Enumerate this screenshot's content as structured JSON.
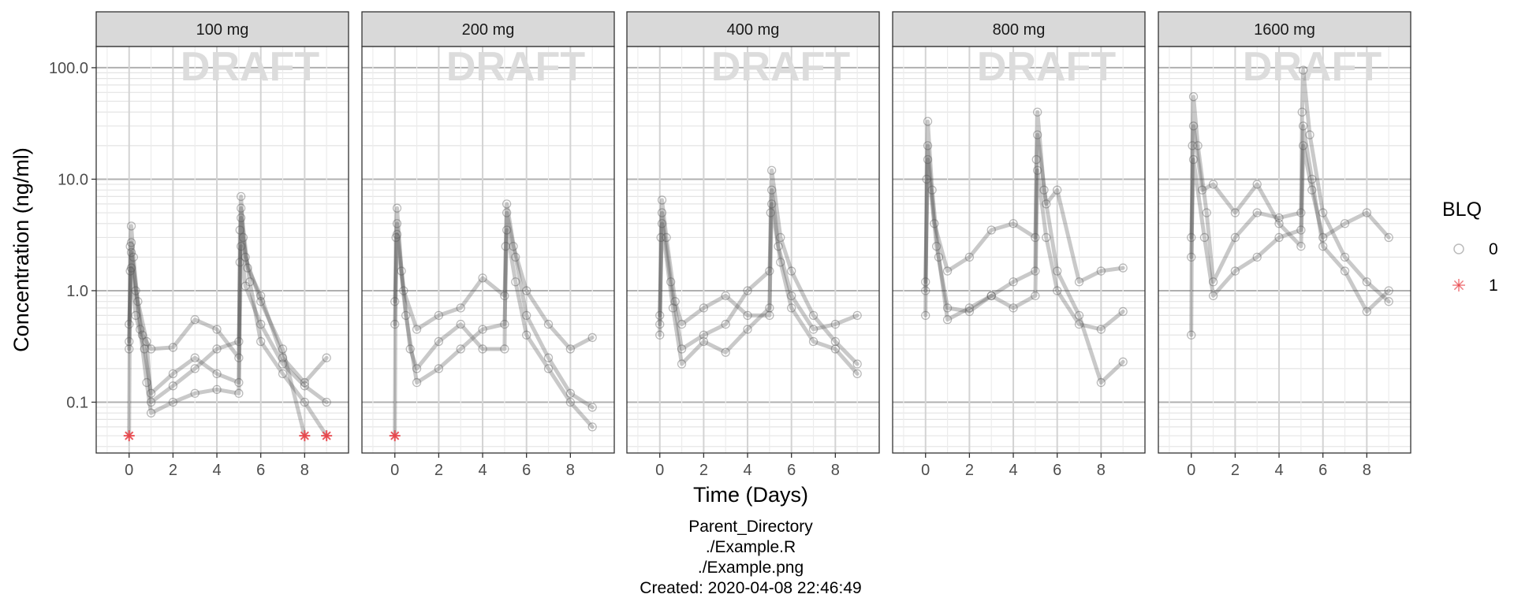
{
  "chart_data": {
    "type": "line",
    "facet_by": "dose",
    "panels": [
      "100 mg",
      "200 mg",
      "400 mg",
      "800 mg",
      "1600 mg"
    ],
    "xlabel": "Time (Days)",
    "ylabel": "Concentration (ng/ml)",
    "x_ticks": [
      0,
      2,
      4,
      6,
      8
    ],
    "x_range": [
      -1.5,
      10
    ],
    "y_scale": "log10",
    "y_range": [
      0.035,
      155
    ],
    "y_ticks": [
      0.1,
      1,
      10,
      100
    ],
    "y_tick_labels": [
      "0.1",
      "1.0",
      "10.0",
      "100.0"
    ],
    "grid": true,
    "watermark": "DRAFT",
    "legend": {
      "title": "BLQ",
      "position": "right",
      "entries": [
        {
          "label": "0",
          "marker": "open-circle",
          "color": "#bbbbbb"
        },
        {
          "label": "1",
          "marker": "asterisk",
          "color": "#e8454a"
        }
      ]
    },
    "line_color": "#4d4d4d",
    "series": [
      {
        "panel": "100 mg",
        "name": "100 mg",
        "points": [
          {
            "x": 0,
            "y": 0.05,
            "blq": 1
          },
          {
            "x": 0.05,
            "y": 2.5
          },
          {
            "x": 0.1,
            "y": 3.8
          },
          {
            "x": 0.2,
            "y": 2.0
          },
          {
            "x": 0.5,
            "y": 0.45
          },
          {
            "x": 0.8,
            "y": 0.15
          },
          {
            "x": 1,
            "y": 0.08
          },
          {
            "x": 2,
            "y": 0.1
          },
          {
            "x": 3,
            "y": 0.12
          },
          {
            "x": 4,
            "y": 0.13
          },
          {
            "x": 5,
            "y": 0.12
          },
          {
            "x": 5.05,
            "y": 3.5
          },
          {
            "x": 5.1,
            "y": 7.0
          },
          {
            "x": 5.2,
            "y": 3.0
          },
          {
            "x": 5.5,
            "y": 1.2
          },
          {
            "x": 6,
            "y": 0.35
          },
          {
            "x": 7,
            "y": 0.18
          },
          {
            "x": 8,
            "y": 0.1
          },
          {
            "x": 9,
            "y": 0.05,
            "blq": 1
          }
        ]
      },
      {
        "panel": "100 mg",
        "name": "100 mg",
        "points": [
          {
            "x": 0,
            "y": 0.3
          },
          {
            "x": 0.05,
            "y": 1.5
          },
          {
            "x": 0.1,
            "y": 2.7
          },
          {
            "x": 0.3,
            "y": 1.0
          },
          {
            "x": 0.6,
            "y": 0.4
          },
          {
            "x": 1,
            "y": 0.3
          },
          {
            "x": 2,
            "y": 0.31
          },
          {
            "x": 3,
            "y": 0.55
          },
          {
            "x": 4,
            "y": 0.45
          },
          {
            "x": 5,
            "y": 0.25
          },
          {
            "x": 5.05,
            "y": 1.8
          },
          {
            "x": 5.1,
            "y": 4.5
          },
          {
            "x": 5.3,
            "y": 2.0
          },
          {
            "x": 6,
            "y": 0.8
          },
          {
            "x": 7,
            "y": 0.3
          },
          {
            "x": 8,
            "y": 0.05,
            "blq": 1
          }
        ]
      },
      {
        "panel": "100 mg",
        "name": "100 mg",
        "points": [
          {
            "x": 0,
            "y": 0.5
          },
          {
            "x": 0.1,
            "y": 1.6
          },
          {
            "x": 0.3,
            "y": 0.6
          },
          {
            "x": 0.7,
            "y": 0.3
          },
          {
            "x": 1,
            "y": 0.12
          },
          {
            "x": 2,
            "y": 0.18
          },
          {
            "x": 3,
            "y": 0.25
          },
          {
            "x": 4,
            "y": 0.18
          },
          {
            "x": 5,
            "y": 0.15
          },
          {
            "x": 5.1,
            "y": 2.5
          },
          {
            "x": 5.3,
            "y": 1.1
          },
          {
            "x": 6,
            "y": 0.5
          },
          {
            "x": 7,
            "y": 0.22
          },
          {
            "x": 8,
            "y": 0.14
          },
          {
            "x": 9,
            "y": 0.1
          }
        ]
      },
      {
        "panel": "100 mg",
        "name": "100 mg",
        "points": [
          {
            "x": 0,
            "y": 0.35
          },
          {
            "x": 0.1,
            "y": 2.2
          },
          {
            "x": 0.4,
            "y": 0.8
          },
          {
            "x": 0.8,
            "y": 0.35
          },
          {
            "x": 1,
            "y": 0.1
          },
          {
            "x": 2,
            "y": 0.14
          },
          {
            "x": 3,
            "y": 0.2
          },
          {
            "x": 4,
            "y": 0.3
          },
          {
            "x": 5,
            "y": 0.35
          },
          {
            "x": 5.1,
            "y": 5.5
          },
          {
            "x": 5.4,
            "y": 1.6
          },
          {
            "x": 6,
            "y": 0.9
          },
          {
            "x": 7,
            "y": 0.25
          },
          {
            "x": 8,
            "y": 0.15
          },
          {
            "x": 9,
            "y": 0.25
          }
        ]
      },
      {
        "panel": "200 mg",
        "name": "200 mg",
        "points": [
          {
            "x": 0,
            "y": 0.05,
            "blq": 1
          },
          {
            "x": 0.05,
            "y": 3.0
          },
          {
            "x": 0.1,
            "y": 5.5
          },
          {
            "x": 0.3,
            "y": 1.5
          },
          {
            "x": 0.7,
            "y": 0.3
          },
          {
            "x": 1,
            "y": 0.2
          },
          {
            "x": 2,
            "y": 0.35
          },
          {
            "x": 3,
            "y": 0.5
          },
          {
            "x": 4,
            "y": 0.3
          },
          {
            "x": 5,
            "y": 0.3
          },
          {
            "x": 5.05,
            "y": 2.5
          },
          {
            "x": 5.1,
            "y": 6.0
          },
          {
            "x": 5.5,
            "y": 2.0
          },
          {
            "x": 6,
            "y": 0.6
          },
          {
            "x": 7,
            "y": 0.25
          },
          {
            "x": 8,
            "y": 0.12
          },
          {
            "x": 9,
            "y": 0.09
          }
        ]
      },
      {
        "panel": "200 mg",
        "name": "200 mg",
        "points": [
          {
            "x": 0,
            "y": 0.8
          },
          {
            "x": 0.1,
            "y": 4.0
          },
          {
            "x": 0.4,
            "y": 1.0
          },
          {
            "x": 1,
            "y": 0.45
          },
          {
            "x": 2,
            "y": 0.6
          },
          {
            "x": 3,
            "y": 0.7
          },
          {
            "x": 4,
            "y": 1.3
          },
          {
            "x": 5,
            "y": 0.9
          },
          {
            "x": 5.1,
            "y": 5.0
          },
          {
            "x": 5.4,
            "y": 2.5
          },
          {
            "x": 6,
            "y": 1.0
          },
          {
            "x": 7,
            "y": 0.5
          },
          {
            "x": 8,
            "y": 0.3
          },
          {
            "x": 9,
            "y": 0.38
          }
        ]
      },
      {
        "panel": "200 mg",
        "name": "200 mg",
        "points": [
          {
            "x": 0,
            "y": 0.5
          },
          {
            "x": 0.1,
            "y": 3.2
          },
          {
            "x": 0.5,
            "y": 0.6
          },
          {
            "x": 1,
            "y": 0.15
          },
          {
            "x": 2,
            "y": 0.2
          },
          {
            "x": 3,
            "y": 0.3
          },
          {
            "x": 4,
            "y": 0.45
          },
          {
            "x": 5,
            "y": 0.5
          },
          {
            "x": 5.1,
            "y": 3.5
          },
          {
            "x": 5.5,
            "y": 1.2
          },
          {
            "x": 6,
            "y": 0.4
          },
          {
            "x": 7,
            "y": 0.2
          },
          {
            "x": 8,
            "y": 0.1
          },
          {
            "x": 9,
            "y": 0.06
          }
        ]
      },
      {
        "panel": "400 mg",
        "name": "400 mg",
        "points": [
          {
            "x": 0,
            "y": 0.4
          },
          {
            "x": 0.05,
            "y": 3.0
          },
          {
            "x": 0.1,
            "y": 6.5
          },
          {
            "x": 0.3,
            "y": 3.0
          },
          {
            "x": 0.7,
            "y": 0.8
          },
          {
            "x": 1,
            "y": 0.5
          },
          {
            "x": 2,
            "y": 0.7
          },
          {
            "x": 3,
            "y": 0.9
          },
          {
            "x": 4,
            "y": 0.6
          },
          {
            "x": 5,
            "y": 0.6
          },
          {
            "x": 5.05,
            "y": 5.0
          },
          {
            "x": 5.1,
            "y": 12.0
          },
          {
            "x": 5.5,
            "y": 3.0
          },
          {
            "x": 6,
            "y": 1.5
          },
          {
            "x": 7,
            "y": 0.6
          },
          {
            "x": 8,
            "y": 0.35
          },
          {
            "x": 9,
            "y": 0.22
          }
        ]
      },
      {
        "panel": "400 mg",
        "name": "400 mg",
        "points": [
          {
            "x": 0,
            "y": 0.6
          },
          {
            "x": 0.1,
            "y": 5.0
          },
          {
            "x": 0.5,
            "y": 1.2
          },
          {
            "x": 1,
            "y": 0.3
          },
          {
            "x": 2,
            "y": 0.4
          },
          {
            "x": 3,
            "y": 0.5
          },
          {
            "x": 4,
            "y": 1.0
          },
          {
            "x": 5,
            "y": 1.5
          },
          {
            "x": 5.1,
            "y": 8.0
          },
          {
            "x": 5.4,
            "y": 2.5
          },
          {
            "x": 6,
            "y": 0.9
          },
          {
            "x": 7,
            "y": 0.45
          },
          {
            "x": 8,
            "y": 0.5
          },
          {
            "x": 9,
            "y": 0.6
          }
        ]
      },
      {
        "panel": "400 mg",
        "name": "400 mg",
        "points": [
          {
            "x": 0,
            "y": 0.5
          },
          {
            "x": 0.1,
            "y": 4.0
          },
          {
            "x": 0.6,
            "y": 0.7
          },
          {
            "x": 1,
            "y": 0.22
          },
          {
            "x": 2,
            "y": 0.35
          },
          {
            "x": 3,
            "y": 0.28
          },
          {
            "x": 4,
            "y": 0.45
          },
          {
            "x": 5,
            "y": 0.7
          },
          {
            "x": 5.1,
            "y": 6.0
          },
          {
            "x": 5.5,
            "y": 1.8
          },
          {
            "x": 6,
            "y": 0.7
          },
          {
            "x": 7,
            "y": 0.35
          },
          {
            "x": 8,
            "y": 0.3
          },
          {
            "x": 9,
            "y": 0.18
          }
        ]
      },
      {
        "panel": "800 mg",
        "name": "800 mg",
        "points": [
          {
            "x": 0,
            "y": 0.6
          },
          {
            "x": 0.05,
            "y": 10.0
          },
          {
            "x": 0.1,
            "y": 33.0
          },
          {
            "x": 0.3,
            "y": 8.0
          },
          {
            "x": 0.6,
            "y": 2.0
          },
          {
            "x": 1,
            "y": 0.55
          },
          {
            "x": 2,
            "y": 0.7
          },
          {
            "x": 3,
            "y": 0.9
          },
          {
            "x": 4,
            "y": 1.2
          },
          {
            "x": 5,
            "y": 1.5
          },
          {
            "x": 5.05,
            "y": 15.0
          },
          {
            "x": 5.1,
            "y": 40.0
          },
          {
            "x": 5.4,
            "y": 8.0
          },
          {
            "x": 6,
            "y": 1.5
          },
          {
            "x": 7,
            "y": 0.6
          },
          {
            "x": 8,
            "y": 0.15
          },
          {
            "x": 9,
            "y": 0.23
          }
        ]
      },
      {
        "panel": "800 mg",
        "name": "800 mg",
        "points": [
          {
            "x": 0,
            "y": 1.2
          },
          {
            "x": 0.1,
            "y": 20.0
          },
          {
            "x": 0.4,
            "y": 4.0
          },
          {
            "x": 1,
            "y": 1.5
          },
          {
            "x": 2,
            "y": 2.0
          },
          {
            "x": 3,
            "y": 3.5
          },
          {
            "x": 4,
            "y": 4.0
          },
          {
            "x": 5,
            "y": 3.0
          },
          {
            "x": 5.1,
            "y": 25.0
          },
          {
            "x": 5.5,
            "y": 6.0
          },
          {
            "x": 6,
            "y": 8.0
          },
          {
            "x": 7,
            "y": 1.2
          },
          {
            "x": 8,
            "y": 1.5
          },
          {
            "x": 9,
            "y": 1.6
          }
        ]
      },
      {
        "panel": "800 mg",
        "name": "800 mg",
        "points": [
          {
            "x": 0,
            "y": 1.0
          },
          {
            "x": 0.1,
            "y": 15.0
          },
          {
            "x": 0.5,
            "y": 2.5
          },
          {
            "x": 1,
            "y": 0.7
          },
          {
            "x": 2,
            "y": 0.65
          },
          {
            "x": 3,
            "y": 0.9
          },
          {
            "x": 4,
            "y": 0.7
          },
          {
            "x": 5,
            "y": 0.9
          },
          {
            "x": 5.1,
            "y": 12.0
          },
          {
            "x": 5.5,
            "y": 3.0
          },
          {
            "x": 6,
            "y": 1.0
          },
          {
            "x": 7,
            "y": 0.5
          },
          {
            "x": 8,
            "y": 0.45
          },
          {
            "x": 9,
            "y": 0.65
          }
        ]
      },
      {
        "panel": "1600 mg",
        "name": "1600 mg",
        "points": [
          {
            "x": 0,
            "y": 0.4
          },
          {
            "x": 0.05,
            "y": 20.0
          },
          {
            "x": 0.1,
            "y": 55.0
          },
          {
            "x": 0.3,
            "y": 20.0
          },
          {
            "x": 0.7,
            "y": 5.0
          },
          {
            "x": 1,
            "y": 1.2
          },
          {
            "x": 2,
            "y": 3.0
          },
          {
            "x": 3,
            "y": 5.0
          },
          {
            "x": 4,
            "y": 4.5
          },
          {
            "x": 5,
            "y": 5.0
          },
          {
            "x": 5.05,
            "y": 40.0
          },
          {
            "x": 5.1,
            "y": 95.0
          },
          {
            "x": 5.4,
            "y": 25.0
          },
          {
            "x": 6,
            "y": 5.0
          },
          {
            "x": 7,
            "y": 2.0
          },
          {
            "x": 8,
            "y": 1.2
          },
          {
            "x": 9,
            "y": 0.8
          }
        ]
      },
      {
        "panel": "1600 mg",
        "name": "1600 mg",
        "points": [
          {
            "x": 0,
            "y": 3.0
          },
          {
            "x": 0.1,
            "y": 30.0
          },
          {
            "x": 0.5,
            "y": 8.0
          },
          {
            "x": 1,
            "y": 9.0
          },
          {
            "x": 2,
            "y": 5.0
          },
          {
            "x": 3,
            "y": 9.0
          },
          {
            "x": 4,
            "y": 4.0
          },
          {
            "x": 5,
            "y": 2.5
          },
          {
            "x": 5.1,
            "y": 20.0
          },
          {
            "x": 5.5,
            "y": 8.0
          },
          {
            "x": 6,
            "y": 3.0
          },
          {
            "x": 7,
            "y": 4.0
          },
          {
            "x": 8,
            "y": 5.0
          },
          {
            "x": 9,
            "y": 3.0
          }
        ]
      },
      {
        "panel": "1600 mg",
        "name": "1600 mg",
        "points": [
          {
            "x": 0,
            "y": 2.0
          },
          {
            "x": 0.1,
            "y": 15.0
          },
          {
            "x": 0.6,
            "y": 3.0
          },
          {
            "x": 1,
            "y": 0.9
          },
          {
            "x": 2,
            "y": 1.5
          },
          {
            "x": 3,
            "y": 2.0
          },
          {
            "x": 4,
            "y": 3.0
          },
          {
            "x": 5,
            "y": 3.5
          },
          {
            "x": 5.1,
            "y": 30.0
          },
          {
            "x": 5.5,
            "y": 10.0
          },
          {
            "x": 6,
            "y": 2.5
          },
          {
            "x": 7,
            "y": 1.5
          },
          {
            "x": 8,
            "y": 0.65
          },
          {
            "x": 9,
            "y": 1.0
          }
        ]
      }
    ]
  },
  "footer": {
    "lines": [
      "Parent_Directory",
      "./Example.R",
      "./Example.png",
      "Created: 2020-04-08 22:46:49"
    ]
  }
}
